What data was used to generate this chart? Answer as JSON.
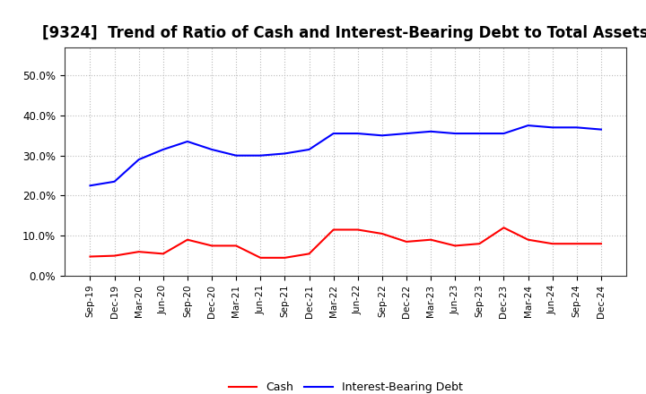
{
  "title": "[9324]  Trend of Ratio of Cash and Interest-Bearing Debt to Total Assets",
  "labels": [
    "Sep-19",
    "Dec-19",
    "Mar-20",
    "Jun-20",
    "Sep-20",
    "Dec-20",
    "Mar-21",
    "Jun-21",
    "Sep-21",
    "Dec-21",
    "Mar-22",
    "Jun-22",
    "Sep-22",
    "Dec-22",
    "Mar-23",
    "Jun-23",
    "Sep-23",
    "Dec-23",
    "Mar-24",
    "Jun-24",
    "Sep-24",
    "Dec-24"
  ],
  "cash": [
    4.8,
    5.0,
    6.0,
    5.5,
    9.0,
    7.5,
    7.5,
    4.5,
    4.5,
    5.5,
    11.5,
    11.5,
    10.5,
    8.5,
    9.0,
    7.5,
    8.0,
    12.0,
    9.0,
    8.0,
    8.0,
    8.0
  ],
  "interest_bearing_debt": [
    22.5,
    23.5,
    29.0,
    31.5,
    33.5,
    31.5,
    30.0,
    30.0,
    30.5,
    31.5,
    35.5,
    35.5,
    35.0,
    35.5,
    36.0,
    35.5,
    35.5,
    35.5,
    37.5,
    37.0,
    37.0,
    36.5
  ],
  "cash_color": "#ff0000",
  "ibd_color": "#0000ff",
  "background_color": "#ffffff",
  "plot_bg_color": "#ffffff",
  "grid_color": "#bbbbbb",
  "ylim": [
    0,
    57
  ],
  "yticks": [
    0,
    10,
    20,
    30,
    40,
    50
  ],
  "title_fontsize": 12,
  "legend_labels": [
    "Cash",
    "Interest-Bearing Debt"
  ]
}
